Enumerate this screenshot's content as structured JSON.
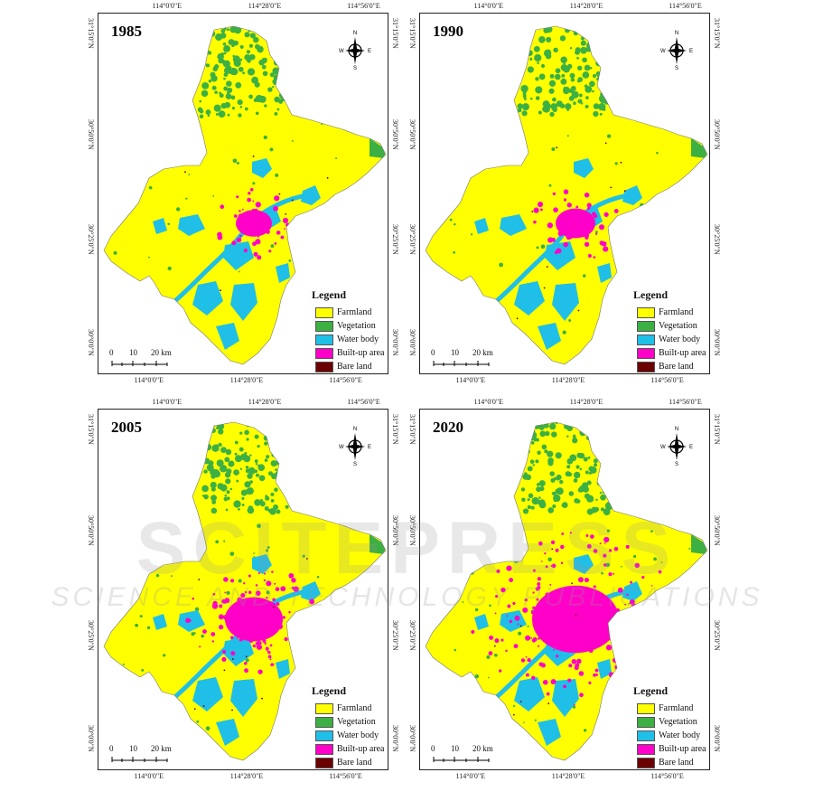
{
  "panels": [
    {
      "year": "1985",
      "axis_top": [
        "114°0'0\"E",
        "114°28'0\"E",
        "114°56'0\"E"
      ],
      "axis_bottom": [
        "114°0'0\"E",
        "114°28'0\"E",
        "114°56'0\"E"
      ],
      "axis_left": [
        "31°15'0\"N",
        "30°50'0\"N",
        "30°25'0\"N",
        "30°0'0\"N"
      ],
      "axis_right": [
        "31°15'0\"N",
        "30°50'0\"N",
        "30°25'0\"N",
        "30°0'0\"N"
      ],
      "built_up_level": 0.15
    },
    {
      "year": "1990",
      "axis_top": [
        "114°0'0\"E",
        "114°28'0\"E",
        "114°56'0\"E"
      ],
      "axis_bottom": [
        "114°0'0\"E",
        "114°28'0\"E",
        "114°56'0\"E"
      ],
      "axis_left": [
        "31°15'0\"N",
        "30°50'0\"N",
        "30°25'0\"N",
        "30°0'0\"N"
      ],
      "axis_right": [
        "31°15'0\"N",
        "30°50'0\"N",
        "30°25'0\"N",
        "30°0'0\"N"
      ],
      "built_up_level": 0.2
    },
    {
      "year": "2005",
      "axis_top": [
        "114°0'0\"E",
        "114°28'0\"E",
        "114°56'0\"E"
      ],
      "axis_bottom": [
        "114°0'0\"E",
        "114°28'0\"E",
        "114°56'0\"E"
      ],
      "axis_left": [
        "31°15'0\"N",
        "30°50'0\"N",
        "30°25'0\"N",
        "30°0'0\"N"
      ],
      "axis_right": [
        "31°15'0\"N",
        "30°50'0\"N",
        "30°25'0\"N",
        "30°0'0\"N"
      ],
      "built_up_level": 0.45
    },
    {
      "year": "2020",
      "axis_top": [
        "114°0'0\"E",
        "114°28'0\"E",
        "114°56'0\"E"
      ],
      "axis_bottom": [
        "114°0'0\"E",
        "114°28'0\"E",
        "114°56'0\"E"
      ],
      "axis_left": [
        "31°15'0\"N",
        "30°50'0\"N",
        "30°25'0\"N",
        "30°0'0\"N"
      ],
      "axis_right": [
        "31°15'0\"N",
        "30°50'0\"N",
        "30°25'0\"N",
        "30°0'0\"N"
      ],
      "built_up_level": 0.85
    }
  ],
  "legend": {
    "title": "Legend",
    "items": [
      {
        "label": "Farmland",
        "color": "#ffff00"
      },
      {
        "label": "Vegetation",
        "color": "#3cb043"
      },
      {
        "label": "Water body",
        "color": "#1fbfe8"
      },
      {
        "label": "Built-up area",
        "color": "#ff00c8"
      },
      {
        "label": "Bare land",
        "color": "#6b0000"
      }
    ]
  },
  "scale_bar": {
    "labels": [
      "0",
      "10",
      "20 km"
    ]
  },
  "compass": {
    "n": "N",
    "s": "S",
    "e": "E",
    "w": "W"
  },
  "colors": {
    "farmland": "#ffff00",
    "vegetation": "#3cb043",
    "water": "#1fbfe8",
    "builtup": "#ff00c8",
    "bare": "#6b0000",
    "frame": "#222222"
  },
  "watermark": {
    "line1": "SCITEPRESS",
    "line2": "SCIENCE AND TECHNOLOGY PUBLICATIONS"
  }
}
